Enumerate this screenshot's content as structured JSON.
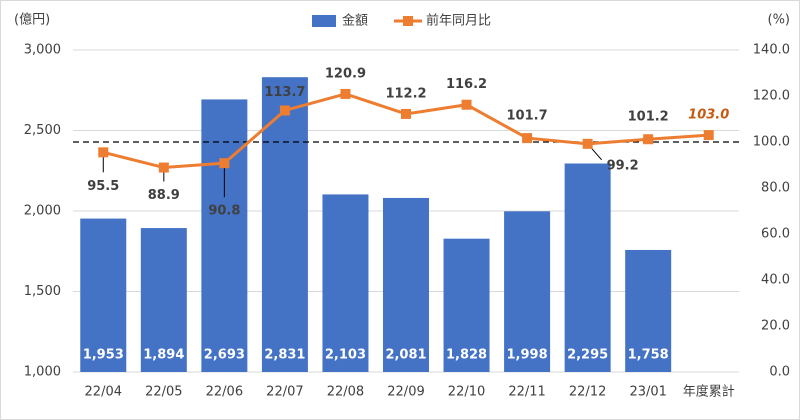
{
  "chart_data": {
    "type": "bar-line",
    "y_label": "(億円)",
    "y2_label": "(%)",
    "categories": [
      "22/04",
      "22/05",
      "22/06",
      "22/07",
      "22/08",
      "22/09",
      "22/10",
      "22/11",
      "22/12",
      "23/01",
      "年度累計"
    ],
    "series": [
      {
        "name": "金額",
        "type": "bar",
        "color": "#4472c4",
        "values": [
          1953,
          1894,
          2693,
          2831,
          2103,
          2081,
          1828,
          1998,
          2295,
          1758,
          null
        ],
        "value_labels": [
          "1,953",
          "1,894",
          "2,693",
          "2,831",
          "2,103",
          "2,081",
          "1,828",
          "1,998",
          "2,295",
          "1,758",
          null
        ]
      },
      {
        "name": "前年同月比",
        "type": "line",
        "axis": "y2",
        "color": "#ed7d31",
        "values": [
          95.5,
          88.9,
          90.8,
          113.7,
          120.9,
          112.2,
          116.2,
          101.7,
          99.2,
          101.2,
          103.0
        ],
        "value_labels": [
          "95.5",
          "88.9",
          "90.8",
          "113.7",
          "120.9",
          "112.2",
          "116.2",
          "101.7",
          "99.2",
          "101.2",
          "103.0"
        ]
      }
    ],
    "ylim": [
      1000,
      3000
    ],
    "yticks": [
      {
        "value": 1000,
        "label": "1,000"
      },
      {
        "value": 1500,
        "label": "1,500"
      },
      {
        "value": 2000,
        "label": "2,000"
      },
      {
        "value": 2500,
        "label": "2,500"
      },
      {
        "value": 3000,
        "label": "3,000"
      }
    ],
    "y2lim": [
      0,
      140
    ],
    "y2ticks": [
      {
        "value": 0,
        "label": "0.0"
      },
      {
        "value": 20,
        "label": "20.0"
      },
      {
        "value": 40,
        "label": "40.0"
      },
      {
        "value": 60,
        "label": "60.0"
      },
      {
        "value": 80,
        "label": "80.0"
      },
      {
        "value": 100,
        "label": "100.0"
      },
      {
        "value": 120,
        "label": "120.0"
      },
      {
        "value": 140,
        "label": "140.0"
      }
    ],
    "reference_line": {
      "axis": "y2",
      "value": 100
    },
    "grid": true,
    "legend": "top"
  }
}
